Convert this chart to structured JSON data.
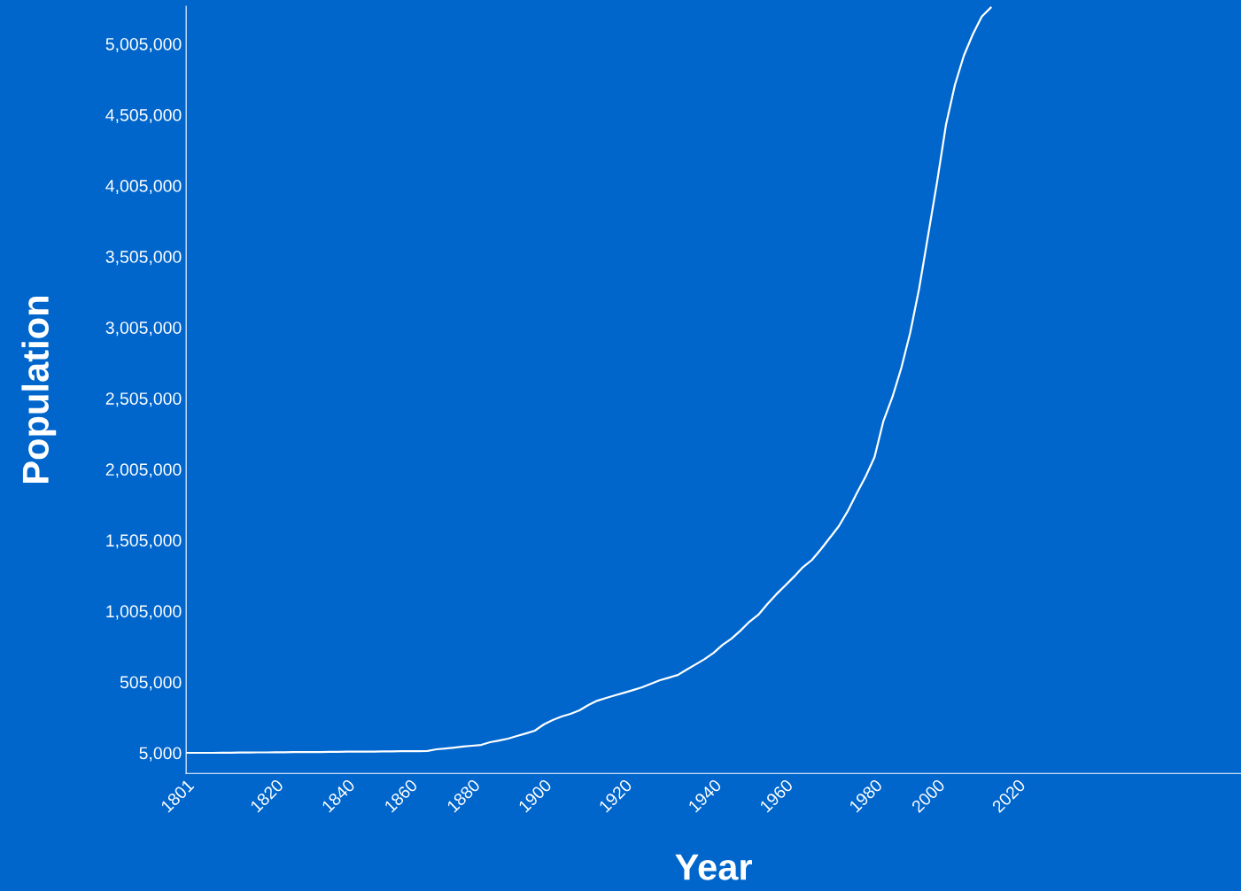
{
  "chart_data": {
    "type": "line",
    "xlabel": "Year",
    "ylabel": "Population",
    "categories": [
      "1801",
      null,
      null,
      null,
      null,
      null,
      null,
      null,
      null,
      null,
      "1820",
      null,
      null,
      null,
      null,
      null,
      null,
      null,
      "1840",
      null,
      null,
      null,
      null,
      null,
      null,
      "1860",
      null,
      null,
      null,
      null,
      null,
      null,
      "1880",
      null,
      null,
      null,
      null,
      null,
      null,
      null,
      "1900",
      null,
      null,
      null,
      null,
      null,
      null,
      null,
      null,
      "1920",
      null,
      null,
      null,
      null,
      null,
      null,
      null,
      null,
      null,
      "1940",
      null,
      null,
      null,
      null,
      null,
      null,
      null,
      "1960",
      null,
      null,
      null,
      null,
      null,
      null,
      null,
      null,
      null,
      "1980",
      null,
      null,
      null,
      null,
      null,
      null,
      "2000",
      null,
      null,
      null,
      null,
      null,
      null,
      null,
      null,
      "2020",
      null,
      null,
      null,
      null,
      null,
      null,
      null,
      null,
      null,
      null,
      null,
      null,
      null,
      null,
      null,
      null,
      null,
      null,
      null,
      null,
      null,
      null,
      null,
      null,
      null
    ],
    "series": [
      {
        "color": "#ffffff",
        "values": [
          5000,
          5000,
          5000,
          5000,
          6000,
          6000,
          7000,
          7000,
          8000,
          8000,
          9000,
          9000,
          10000,
          10000,
          11000,
          11000,
          12000,
          12000,
          13000,
          13000,
          14000,
          14000,
          15000,
          15000,
          16000,
          16000,
          17000,
          18000,
          30000,
          36000,
          42000,
          49000,
          55000,
          61000,
          80000,
          92000,
          105000,
          124000,
          142000,
          161000,
          205000,
          236000,
          261000,
          280000,
          305000,
          342000,
          373000,
          392000,
          411000,
          429000,
          448000,
          467000,
          492000,
          517000,
          535000,
          554000,
          592000,
          629000,
          666000,
          710000,
          766000,
          810000,
          866000,
          929000,
          978000,
          1053000,
          1122000,
          1184000,
          1247000,
          1315000,
          1365000,
          1440000,
          1521000,
          1602000,
          1709000,
          1833000,
          1952000,
          2089000,
          2345000,
          2513000,
          2719000,
          2969000,
          3281000,
          3655000,
          4030000,
          4435000,
          4716000,
          4922000,
          5072000,
          5197000,
          5260000,
          null,
          null,
          null,
          null,
          null,
          null,
          null,
          null,
          null,
          null,
          null,
          null,
          null,
          null,
          null,
          null,
          null,
          null,
          null,
          null,
          null,
          null,
          null,
          null,
          null,
          null,
          null,
          null
        ]
      }
    ],
    "ylim": [
      -140000,
      5270000
    ],
    "yticks": [
      {
        "value": 5000,
        "label": "5,000"
      },
      {
        "value": 505000,
        "label": "505,000"
      },
      {
        "value": 1005000,
        "label": "1,005,000"
      },
      {
        "value": 1505000,
        "label": "1,505,000"
      },
      {
        "value": 2005000,
        "label": "2,005,000"
      },
      {
        "value": 2505000,
        "label": "2,505,000"
      },
      {
        "value": 3005000,
        "label": "3,005,000"
      },
      {
        "value": 3505000,
        "label": "3,505,000"
      },
      {
        "value": 4005000,
        "label": "4,005,000"
      },
      {
        "value": 4505000,
        "label": "4,505,000"
      },
      {
        "value": 5005000,
        "label": "5,005,000"
      }
    ],
    "grid": false,
    "legend": false,
    "marker": "none",
    "line_style": "solid"
  }
}
